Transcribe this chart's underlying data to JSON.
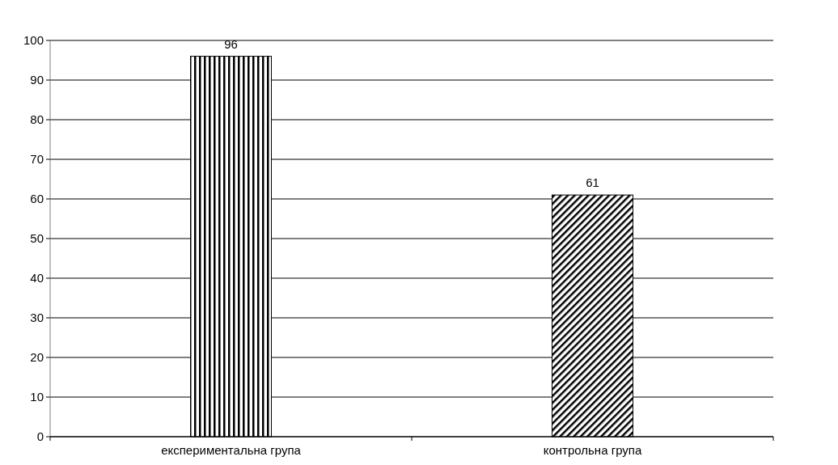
{
  "chart_data": {
    "type": "bar",
    "categories": [
      "експериментальна група",
      "контрольна група"
    ],
    "values": [
      96,
      61
    ],
    "colors": [
      "#000000",
      "#000000"
    ],
    "ylim": [
      0,
      100
    ],
    "yticks": [
      0,
      10,
      20,
      30,
      40,
      50,
      60,
      70,
      80,
      90,
      100
    ],
    "grid": "y",
    "data_labels": true
  }
}
